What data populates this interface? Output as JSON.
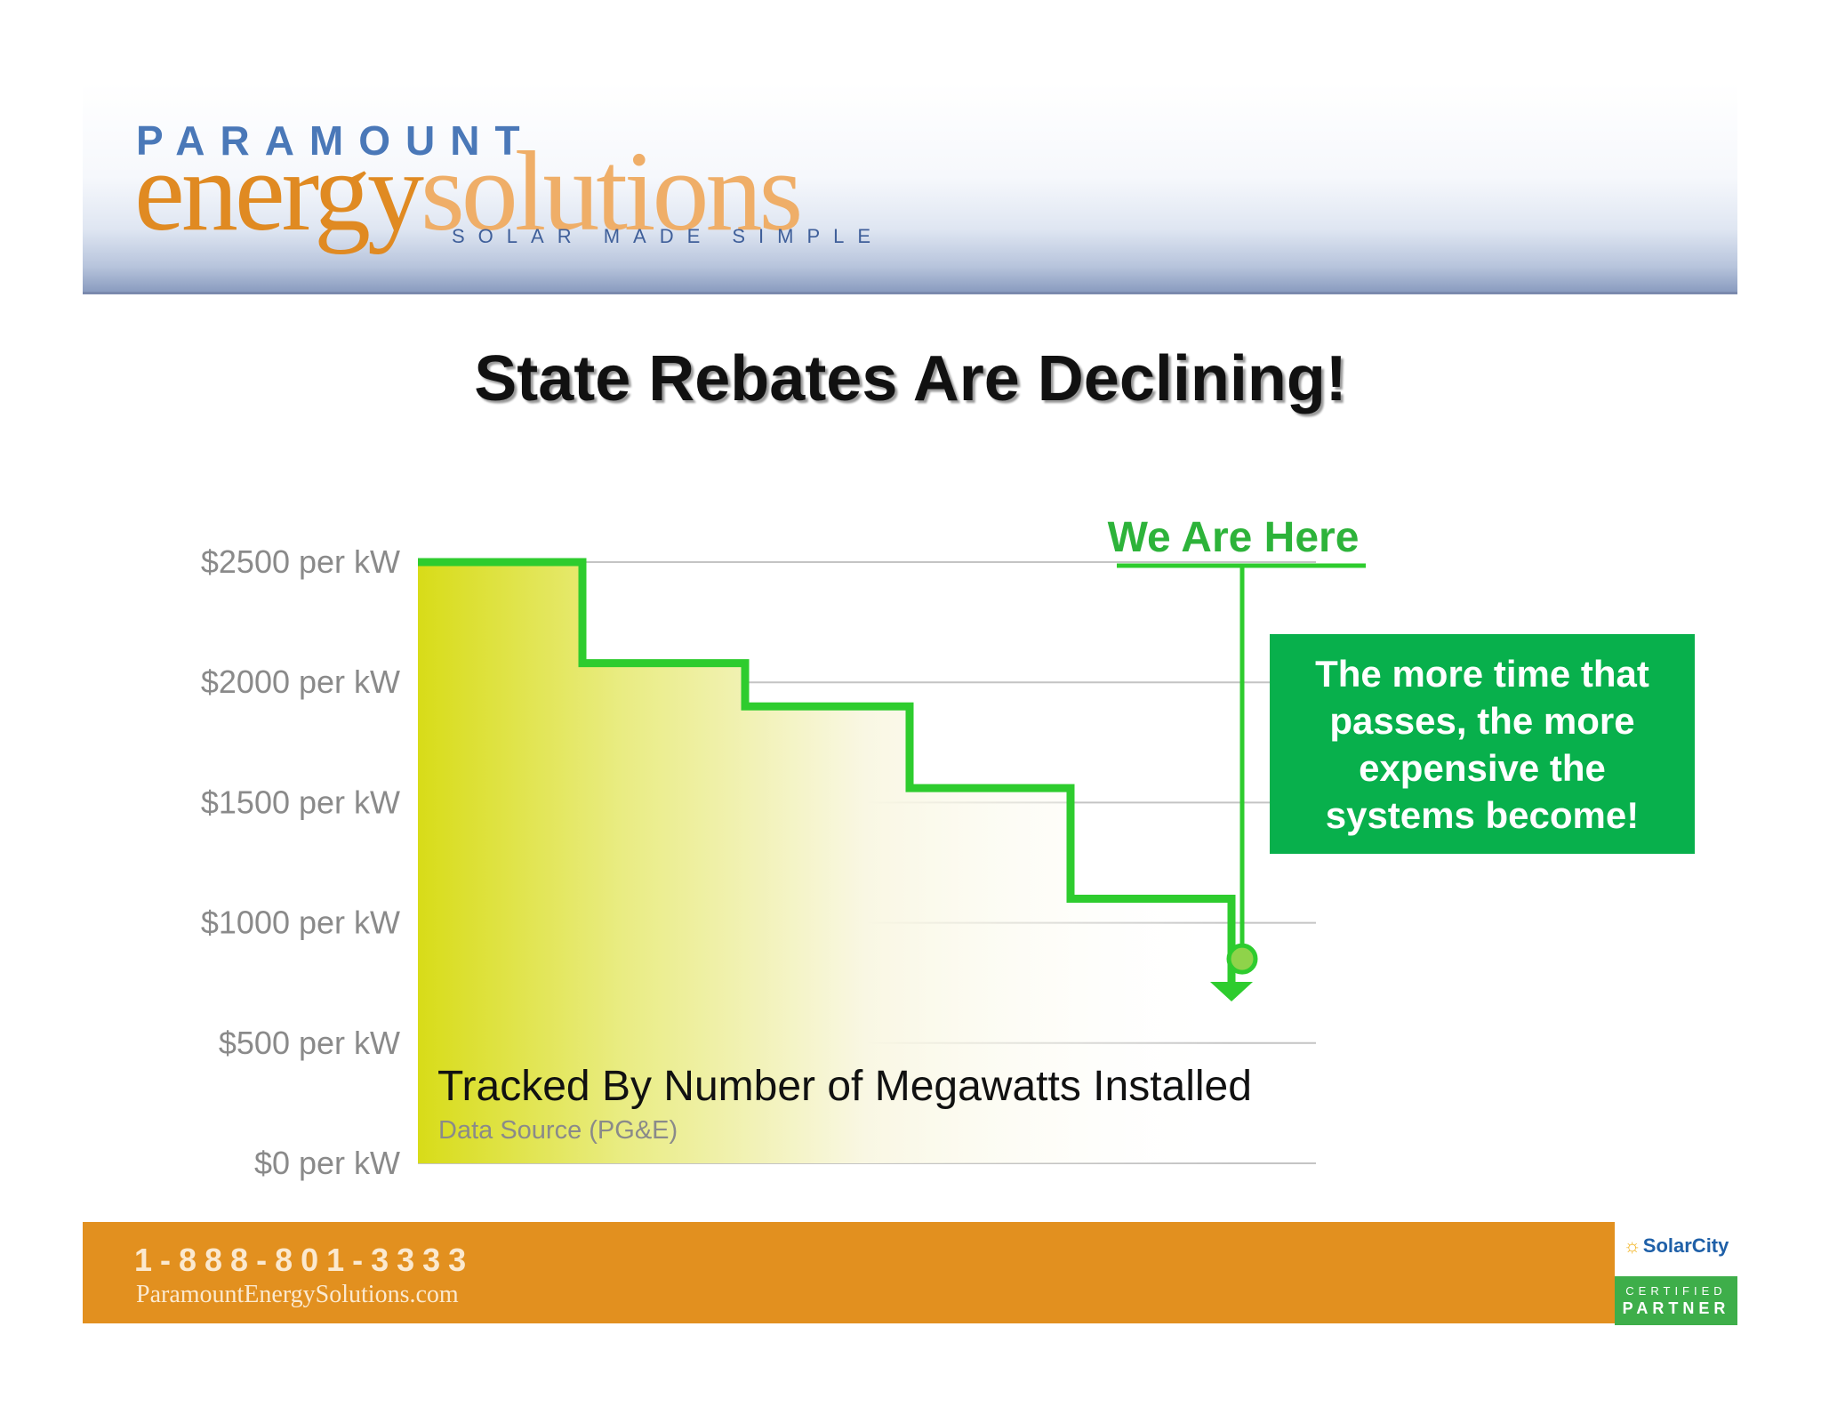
{
  "header": {
    "logo_top": "PARAMOUNT",
    "logo_energy": "energy",
    "logo_solutions": "solutions",
    "logo_tagline": "SOLAR MADE SIMPLE"
  },
  "title": "State Rebates Are Declining!",
  "annotation": {
    "we_are_here": "We Are Here",
    "callout": "The more time that passes, the more expensive the systems become!",
    "tracked_by": "Tracked By Number of Megawatts Installed",
    "data_source": "Data Source (PG&E)"
  },
  "colors": {
    "step_line": "#2ecc2e",
    "callout_bg": "#08b04c",
    "fill_start": "#d8dc18",
    "footer_bg": "#e2901f"
  },
  "chart_data": {
    "type": "line",
    "subtype": "step",
    "title": "State Rebates Are Declining!",
    "xlabel": "Tracked By Number of Megawatts Installed",
    "ylabel": "",
    "ylim": [
      0,
      2500
    ],
    "yticks": [
      0,
      500,
      1000,
      1500,
      2000,
      2500
    ],
    "ytick_labels": [
      "$0 per kW",
      "$500 per kW",
      "$1000 per kW",
      "$1500 per kW",
      "$2000 per kW",
      "$2500 per kW"
    ],
    "grid": true,
    "steps": [
      2500,
      2080,
      1900,
      1560,
      1100
    ],
    "current_marker": 850,
    "continues_down": true
  },
  "footer": {
    "phone": "1-888-801-3333",
    "website": "ParamountEnergySolutions.com",
    "badge_brand": "SolarCity",
    "badge_certified": "CERTIFIED",
    "badge_partner": "PARTNER"
  }
}
